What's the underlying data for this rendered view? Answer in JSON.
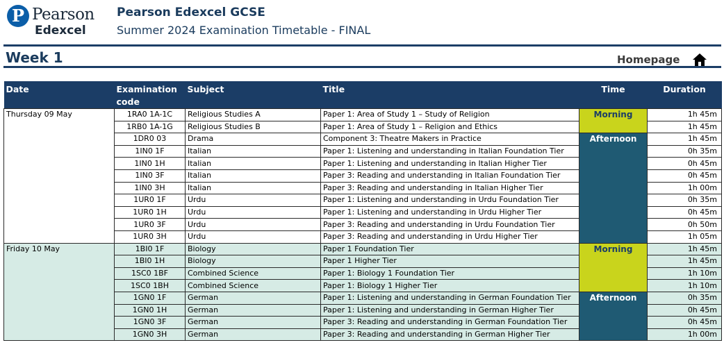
{
  "header": {
    "logo_top": "Pearson",
    "logo_bottom": "Edexcel",
    "title": "Pearson Edexcel GCSE",
    "subtitle": "Summer 2024 Examination Timetable - FINAL"
  },
  "section": {
    "week": "Week 1",
    "homepage": "Homepage"
  },
  "table": {
    "headers": {
      "date": "Date",
      "code_line1": "Examination",
      "code_line2": "code",
      "subject": "Subject",
      "title": "Title",
      "time": "Time",
      "duration": "Duration"
    },
    "days": [
      {
        "date": "Thursday 09 May",
        "highlight": false,
        "sessions": [
          {
            "label": "Morning",
            "rows": [
              {
                "code": "1RA0 1A-1C",
                "subject": "Religious Studies A",
                "title": "Paper 1: Area of Study 1 – Study of Religion",
                "duration": "1h 45m"
              },
              {
                "code": "1RB0 1A-1G",
                "subject": "Religious Studies B",
                "title": "Paper 1: Area of Study 1 – Religion and Ethics",
                "duration": "1h 45m"
              }
            ]
          },
          {
            "label": "Afternoon",
            "rows": [
              {
                "code": "1DR0 03",
                "subject": "Drama",
                "title": "Component 3: Theatre Makers in Practice",
                "duration": "1h 45m"
              },
              {
                "code": "1IN0 1F",
                "subject": "Italian",
                "title": "Paper 1: Listening and understanding in Italian Foundation Tier",
                "duration": "0h 35m"
              },
              {
                "code": "1IN0 1H",
                "subject": "Italian",
                "title": "Paper 1: Listening and understanding in Italian Higher Tier",
                "duration": "0h 45m"
              },
              {
                "code": "1IN0 3F",
                "subject": "Italian",
                "title": "Paper 3: Reading and understanding in Italian Foundation Tier",
                "duration": "0h 45m"
              },
              {
                "code": "1IN0 3H",
                "subject": "Italian",
                "title": "Paper 3: Reading and understanding in Italian Higher Tier",
                "duration": "1h 00m"
              },
              {
                "code": "1UR0 1F",
                "subject": "Urdu",
                "title": "Paper 1: Listening and understanding in Urdu Foundation Tier",
                "duration": "0h 35m"
              },
              {
                "code": "1UR0 1H",
                "subject": "Urdu",
                "title": "Paper 1: Listening and understanding in Urdu Higher Tier",
                "duration": "0h 45m"
              },
              {
                "code": "1UR0 3F",
                "subject": "Urdu",
                "title": "Paper 3: Reading and understanding in Urdu Foundation Tier",
                "duration": "0h 50m"
              },
              {
                "code": "1UR0 3H",
                "subject": "Urdu",
                "title": "Paper 3: Reading and understanding in Urdu Higher Tier",
                "duration": "1h 05m"
              }
            ]
          }
        ]
      },
      {
        "date": "Friday 10 May",
        "highlight": true,
        "sessions": [
          {
            "label": "Morning",
            "rows": [
              {
                "code": "1BI0 1F",
                "subject": "Biology",
                "title": "Paper 1 Foundation Tier",
                "duration": "1h 45m"
              },
              {
                "code": "1BI0 1H",
                "subject": "Biology",
                "title": "Paper 1 Higher Tier",
                "duration": "1h 45m"
              },
              {
                "code": "1SC0 1BF",
                "subject": "Combined Science",
                "title": "Paper 1: Biology 1 Foundation Tier",
                "duration": "1h 10m"
              },
              {
                "code": "1SC0 1BH",
                "subject": "Combined Science",
                "title": "Paper 1: Biology 1 Higher Tier",
                "duration": "1h 10m"
              }
            ]
          },
          {
            "label": "Afternoon",
            "rows": [
              {
                "code": "1GN0 1F",
                "subject": "German",
                "title": "Paper 1: Listening and understanding in German Foundation Tier",
                "duration": "0h 35m"
              },
              {
                "code": "1GN0 1H",
                "subject": "German",
                "title": "Paper 1: Listening and understanding in German Higher Tier",
                "duration": "0h 45m"
              },
              {
                "code": "1GN0 3F",
                "subject": "German",
                "title": "Paper 3: Reading and understanding in German Foundation Tier",
                "duration": "0h 45m"
              },
              {
                "code": "1GN0 3H",
                "subject": "German",
                "title": "Paper 3: Reading and understanding in German Higher Tier",
                "duration": "1h 00m"
              }
            ]
          }
        ]
      }
    ]
  },
  "colors": {
    "navy": "#1b3d66",
    "morning": "#c9d41c",
    "afternoon": "#1f5a73",
    "friday_row": "#d6ebe5"
  },
  "icons": {
    "logo": "pearson-logo-icon",
    "home": "home-icon"
  }
}
